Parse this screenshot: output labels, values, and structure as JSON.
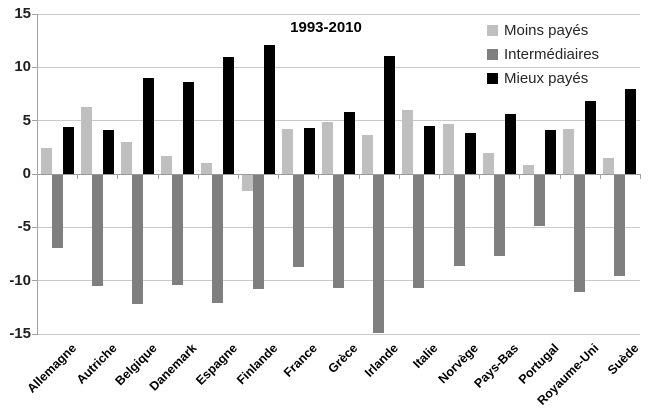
{
  "chart_data": {
    "type": "bar",
    "title": "1993-2010",
    "categories": [
      "Allemagne",
      "Autriche",
      "Belgique",
      "Danemark",
      "Espagne",
      "Finlande",
      "France",
      "Grèce",
      "Irlande",
      "Italie",
      "Norvège",
      "Pays-Bas",
      "Portugal",
      "Royaume-Uni",
      "Suède"
    ],
    "series": [
      {
        "name": "Moins payés",
        "color": "#bfbfbf",
        "values": [
          2.4,
          6.3,
          3.0,
          1.7,
          1.0,
          -1.5,
          4.2,
          4.9,
          3.7,
          6.0,
          4.7,
          2.0,
          0.8,
          4.2,
          1.5
        ]
      },
      {
        "name": "Intermédiaires",
        "color": "#7f7f7f",
        "values": [
          -6.8,
          -10.4,
          -12.1,
          -10.3,
          -12.0,
          -10.7,
          -8.6,
          -10.6,
          -14.8,
          -10.6,
          -8.5,
          -7.6,
          -4.8,
          -11.0,
          -9.5
        ]
      },
      {
        "name": "Mieux payés",
        "color": "#000000",
        "values": [
          4.4,
          4.1,
          9.0,
          8.6,
          11.0,
          12.1,
          4.3,
          5.8,
          11.1,
          4.5,
          3.8,
          5.6,
          4.1,
          6.8,
          8.0
        ]
      }
    ],
    "ylim": [
      -15,
      15
    ],
    "yticks": [
      15,
      10,
      5,
      0,
      -5,
      -10,
      -15
    ],
    "grid": true,
    "legend_position": "top-right",
    "xlabel": "",
    "ylabel": ""
  }
}
